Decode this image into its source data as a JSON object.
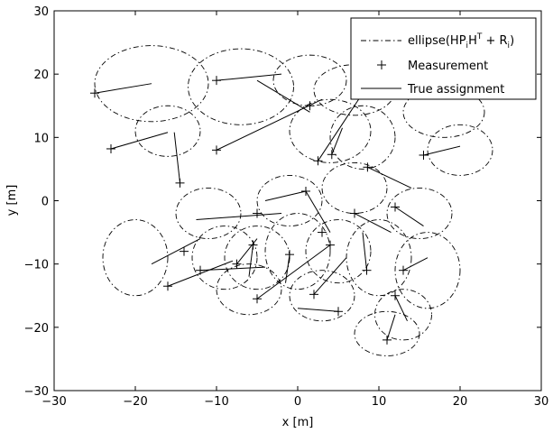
{
  "chart_data": {
    "type": "scatter",
    "title": "",
    "xlabel": "x [m]",
    "ylabel": "y [m]",
    "xlim": [
      -30,
      30
    ],
    "ylim": [
      -30,
      30
    ],
    "xticks": [
      -30,
      -20,
      -10,
      0,
      10,
      20,
      30
    ],
    "yticks": [
      -30,
      -20,
      -10,
      0,
      10,
      20,
      30
    ],
    "grid": false,
    "legend_position": "top-right",
    "legend": {
      "ellipse_base": "ellipse(HP",
      "ellipse_sub_i": "i",
      "ellipse_mid": "H",
      "ellipse_sup_T": "T",
      "ellipse_plus": " + R",
      "ellipse_sub_i2": "i",
      "ellipse_close": ")",
      "measurement": "Measurement",
      "assignment": "True assignment"
    },
    "ellipses": [
      {
        "cx": -18,
        "cy": 18.5,
        "rx": 7,
        "ry": 6
      },
      {
        "cx": -7,
        "cy": 18,
        "rx": 6.5,
        "ry": 6
      },
      {
        "cx": 1.5,
        "cy": 19,
        "rx": 4.5,
        "ry": 4
      },
      {
        "cx": 7,
        "cy": 17.5,
        "rx": 5,
        "ry": 4
      },
      {
        "cx": 18,
        "cy": 14,
        "rx": 5,
        "ry": 4
      },
      {
        "cx": -16,
        "cy": 11,
        "rx": 4,
        "ry": 4
      },
      {
        "cx": 4,
        "cy": 11,
        "rx": 5,
        "ry": 5
      },
      {
        "cx": 8,
        "cy": 10,
        "rx": 4,
        "ry": 5
      },
      {
        "cx": 20,
        "cy": 8,
        "rx": 4,
        "ry": 4
      },
      {
        "cx": -11,
        "cy": -2,
        "rx": 4,
        "ry": 4
      },
      {
        "cx": -1,
        "cy": 0,
        "rx": 4,
        "ry": 4
      },
      {
        "cx": 7,
        "cy": 2,
        "rx": 4,
        "ry": 4
      },
      {
        "cx": 15,
        "cy": -2,
        "rx": 4,
        "ry": 4
      },
      {
        "cx": -20,
        "cy": -9,
        "rx": 4,
        "ry": 6
      },
      {
        "cx": -9,
        "cy": -9,
        "rx": 4,
        "ry": 5
      },
      {
        "cx": -5,
        "cy": -9,
        "rx": 4,
        "ry": 5
      },
      {
        "cx": 0,
        "cy": -8,
        "rx": 4,
        "ry": 6
      },
      {
        "cx": 5,
        "cy": -8,
        "rx": 4,
        "ry": 5
      },
      {
        "cx": 10,
        "cy": -9,
        "rx": 4,
        "ry": 6
      },
      {
        "cx": 16,
        "cy": -11,
        "rx": 4,
        "ry": 6
      },
      {
        "cx": -6,
        "cy": -14,
        "rx": 4,
        "ry": 4
      },
      {
        "cx": 3,
        "cy": -15,
        "rx": 4,
        "ry": 4
      },
      {
        "cx": 13,
        "cy": -18,
        "rx": 3.5,
        "ry": 4
      },
      {
        "cx": 11,
        "cy": -21,
        "rx": 4,
        "ry": 3.5
      }
    ],
    "measurements": [
      {
        "x": -25,
        "y": 17
      },
      {
        "x": -10,
        "y": 19
      },
      {
        "x": 1.5,
        "y": 15
      },
      {
        "x": -23,
        "y": 8.2
      },
      {
        "x": -10,
        "y": 8
      },
      {
        "x": -14.5,
        "y": 2.8
      },
      {
        "x": 2.5,
        "y": 6.3
      },
      {
        "x": 4.2,
        "y": 7.3
      },
      {
        "x": 8.6,
        "y": 5.3
      },
      {
        "x": 15.5,
        "y": 7.2
      },
      {
        "x": 1,
        "y": 1.5
      },
      {
        "x": -5,
        "y": -2
      },
      {
        "x": 3,
        "y": -5
      },
      {
        "x": 7,
        "y": -2
      },
      {
        "x": 12,
        "y": -1
      },
      {
        "x": -14,
        "y": -8
      },
      {
        "x": -16,
        "y": -13.5
      },
      {
        "x": -12,
        "y": -11
      },
      {
        "x": -5.5,
        "y": -7
      },
      {
        "x": -7.5,
        "y": -10
      },
      {
        "x": -1,
        "y": -8.5
      },
      {
        "x": 4,
        "y": -7
      },
      {
        "x": 8.5,
        "y": -11
      },
      {
        "x": 13,
        "y": -11
      },
      {
        "x": -5,
        "y": -15.5
      },
      {
        "x": 2,
        "y": -14.8
      },
      {
        "x": 5,
        "y": -17.5
      },
      {
        "x": 11,
        "y": -22
      },
      {
        "x": 12,
        "y": -15
      }
    ],
    "assignments": [
      {
        "x1": -25,
        "y1": 17,
        "x2": -18,
        "y2": 18.5
      },
      {
        "x1": -10,
        "y1": 19,
        "x2": -2,
        "y2": 20
      },
      {
        "x1": -5,
        "y1": 19,
        "x2": 1.5,
        "y2": 14
      },
      {
        "x1": -23,
        "y1": 8.2,
        "x2": -16,
        "y2": 10.8
      },
      {
        "x1": -10,
        "y1": 8,
        "x2": 3,
        "y2": 16
      },
      {
        "x1": -14.5,
        "y1": 2.8,
        "x2": -15.2,
        "y2": 10.8
      },
      {
        "x1": 2.5,
        "y1": 6.3,
        "x2": 7.5,
        "y2": 16
      },
      {
        "x1": 4.2,
        "y1": 7.3,
        "x2": 5.5,
        "y2": 11.5
      },
      {
        "x1": 8.6,
        "y1": 5.3,
        "x2": 14,
        "y2": 2
      },
      {
        "x1": 15.5,
        "y1": 7.2,
        "x2": 20,
        "y2": 8.6
      },
      {
        "x1": 1,
        "y1": 1.5,
        "x2": -4,
        "y2": 0
      },
      {
        "x1": -12.5,
        "y1": -3,
        "x2": -2,
        "y2": -2
      },
      {
        "x1": 1,
        "y1": 1.5,
        "x2": 4,
        "y2": -5
      },
      {
        "x1": 7,
        "y1": -2,
        "x2": 11.5,
        "y2": -5
      },
      {
        "x1": 12,
        "y1": -1,
        "x2": 15.5,
        "y2": -4
      },
      {
        "x1": -18,
        "y1": -10,
        "x2": -12,
        "y2": -6
      },
      {
        "x1": -16,
        "y1": -13.5,
        "x2": -8,
        "y2": -9.5
      },
      {
        "x1": -12,
        "y1": -11,
        "x2": -4,
        "y2": -10.5
      },
      {
        "x1": -5.5,
        "y1": -7,
        "x2": -6,
        "y2": -12
      },
      {
        "x1": -7.5,
        "y1": -10,
        "x2": -5,
        "y2": -6
      },
      {
        "x1": -1,
        "y1": -8.5,
        "x2": -1.5,
        "y2": -13
      },
      {
        "x1": 4,
        "y1": -7,
        "x2": -5,
        "y2": -15.5
      },
      {
        "x1": 8.5,
        "y1": -11,
        "x2": 8,
        "y2": -5
      },
      {
        "x1": 13,
        "y1": -11,
        "x2": 16,
        "y2": -9
      },
      {
        "x1": 2,
        "y1": -14.8,
        "x2": 6,
        "y2": -9
      },
      {
        "x1": 5,
        "y1": -17.5,
        "x2": 0,
        "y2": -17
      },
      {
        "x1": 11,
        "y1": -22,
        "x2": 12,
        "y2": -18
      },
      {
        "x1": 12,
        "y1": -15,
        "x2": 13.5,
        "y2": -19
      }
    ]
  }
}
